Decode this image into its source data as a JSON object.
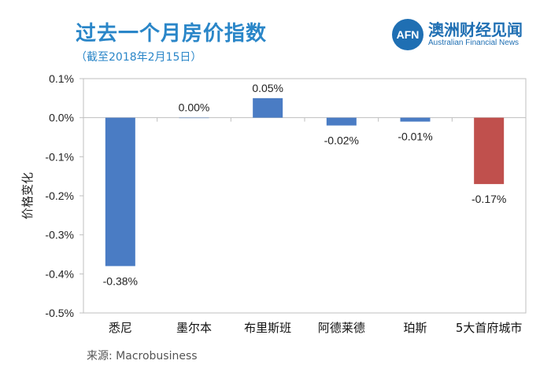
{
  "header": {
    "title": "过去一个月房价指数",
    "subtitle": "（截至2018年2月15日）"
  },
  "logo": {
    "mark": "AFN",
    "name_cn": "澳洲财经见闻",
    "name_en": "Australian Financial News"
  },
  "footer": {
    "source": "来源:  Macrobusiness"
  },
  "colors": {
    "title": "#2a86c8",
    "positive_bar": "#4a7cc4",
    "highlight_bar": "#c0504d"
  },
  "chart_data": {
    "type": "bar",
    "categories": [
      "悉尼",
      "墨尔本",
      "布里斯班",
      "阿德莱德",
      "珀斯",
      "5大首府城市"
    ],
    "values": [
      -0.38,
      0.0,
      0.05,
      -0.02,
      -0.01,
      -0.17
    ],
    "data_labels": [
      "-0.38%",
      "0.00%",
      "0.05%",
      "-0.02%",
      "-0.01%",
      "-0.17%"
    ],
    "bar_colors": [
      "#4a7cc4",
      "#4a7cc4",
      "#4a7cc4",
      "#4a7cc4",
      "#4a7cc4",
      "#c0504d"
    ],
    "ylabel": "价格变化",
    "ylim": [
      -0.5,
      0.1
    ],
    "yticks": [
      0.1,
      0.0,
      -0.1,
      -0.2,
      -0.3,
      -0.4,
      -0.5
    ],
    "ytick_labels": [
      "0.1%",
      "0.0%",
      "-0.1%",
      "-0.2%",
      "-0.3%",
      "-0.4%",
      "-0.5%"
    ],
    "grid": false,
    "legend": "none"
  }
}
